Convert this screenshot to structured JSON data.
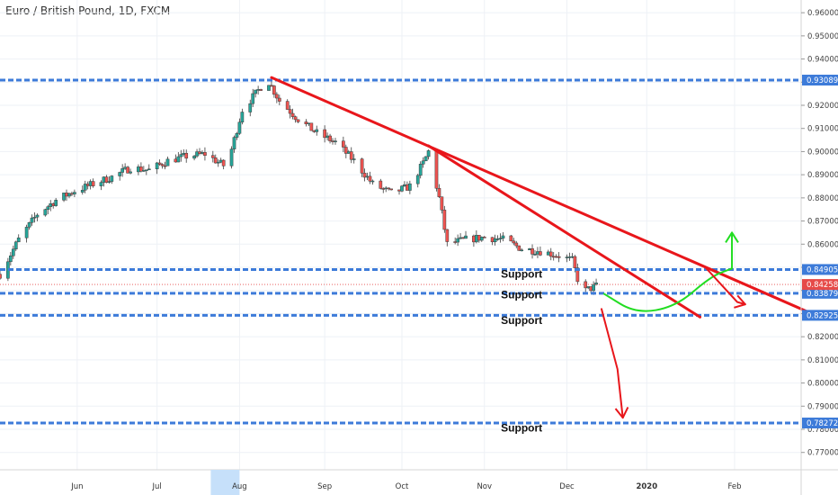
{
  "header": {
    "title": "Euro / British Pound, 1D, FXCM"
  },
  "colors": {
    "up": "#26a69a",
    "down": "#ef5350",
    "candle_outline": "#3c3c3c",
    "support_line": "#3d7bd9",
    "trend_line": "#e8161b",
    "projection_green": "#22dd22",
    "projection_red": "#e8161b",
    "grid": "#eef1f6",
    "price_marker": "#e64a48"
  },
  "chart_data": {
    "type": "candlestick",
    "title": "Euro / British Pound, 1D, FXCM",
    "xlabel": "",
    "ylabel": "",
    "ylim": [
      0.7625,
      0.9655
    ],
    "x_range": [
      "2019-05-03",
      "2020-02-28"
    ],
    "y_ticks": [
      "0.96000",
      "0.95000",
      "0.94000",
      "0.93000",
      "0.92000",
      "0.91000",
      "0.90000",
      "0.89000",
      "0.88000",
      "0.87000",
      "0.86000",
      "0.85000",
      "0.84000",
      "0.83000",
      "0.82000",
      "0.81000",
      "0.80000",
      "0.79000",
      "0.78000",
      "0.77000"
    ],
    "x_ticks": [
      {
        "label": "Jun",
        "date": "2019-06-01"
      },
      {
        "label": "Jul",
        "date": "2019-07-01"
      },
      {
        "label": "Aug",
        "date": "2019-08-01",
        "highlight": true
      },
      {
        "label": "Sep",
        "date": "2019-09-02"
      },
      {
        "label": "Oct",
        "date": "2019-10-01"
      },
      {
        "label": "Nov",
        "date": "2019-11-01"
      },
      {
        "label": "Dec",
        "date": "2019-12-02"
      },
      {
        "label": "2020",
        "date": "2020-01-01",
        "bold": true
      },
      {
        "label": "Feb",
        "date": "2020-02-03"
      }
    ],
    "price_path": [
      [
        "2019-05-03",
        0.847
      ],
      [
        "2019-05-10",
        0.862
      ],
      [
        "2019-05-17",
        0.873
      ],
      [
        "2019-05-24",
        0.879
      ],
      [
        "2019-05-31",
        0.883
      ],
      [
        "2019-06-07",
        0.886
      ],
      [
        "2019-06-14",
        0.889
      ],
      [
        "2019-06-21",
        0.893
      ],
      [
        "2019-06-28",
        0.892
      ],
      [
        "2019-07-05",
        0.896
      ],
      [
        "2019-07-12",
        0.898
      ],
      [
        "2019-07-19",
        0.899
      ],
      [
        "2019-07-26",
        0.894
      ],
      [
        "2019-07-29",
        0.901
      ],
      [
        "2019-08-02",
        0.918
      ],
      [
        "2019-08-07",
        0.925
      ],
      [
        "2019-08-09",
        0.928
      ],
      [
        "2019-08-12",
        0.93
      ],
      [
        "2019-08-16",
        0.922
      ],
      [
        "2019-08-23",
        0.914
      ],
      [
        "2019-08-30",
        0.908
      ],
      [
        "2019-09-06",
        0.904
      ],
      [
        "2019-09-13",
        0.896
      ],
      [
        "2019-09-20",
        0.886
      ],
      [
        "2019-09-27",
        0.882
      ],
      [
        "2019-10-04",
        0.885
      ],
      [
        "2019-10-09",
        0.895
      ],
      [
        "2019-10-11",
        0.9
      ],
      [
        "2019-10-15",
        0.88
      ],
      [
        "2019-10-18",
        0.86
      ],
      [
        "2019-10-25",
        0.862
      ],
      [
        "2019-11-01",
        0.863
      ],
      [
        "2019-11-08",
        0.862
      ],
      [
        "2019-11-15",
        0.858
      ],
      [
        "2019-11-22",
        0.857
      ],
      [
        "2019-11-29",
        0.855
      ],
      [
        "2019-12-04",
        0.853
      ],
      [
        "2019-12-06",
        0.845
      ],
      [
        "2019-12-09",
        0.84
      ],
      [
        "2019-12-13",
        0.842
      ],
      [
        "2019-12-15",
        0.8426
      ]
    ],
    "last_price": {
      "value": 0.84258,
      "label": "0.84258"
    },
    "support_levels": [
      {
        "value": 0.93089,
        "label": "0.93089"
      },
      {
        "value": 0.84905,
        "label": "0.84905"
      },
      {
        "value": 0.83879,
        "label": "0.83879"
      },
      {
        "value": 0.82925,
        "label": "0.82925"
      },
      {
        "value": 0.78272,
        "label": "0.78272"
      }
    ],
    "annotations": [
      {
        "text": "Support",
        "date": "2019-11-15",
        "value": 0.8455
      },
      {
        "text": "Support",
        "date": "2019-11-15",
        "value": 0.8365
      },
      {
        "text": "Support",
        "date": "2019-11-15",
        "value": 0.8255
      },
      {
        "text": "Support",
        "date": "2019-11-15",
        "value": 0.779
      }
    ],
    "trend_lines": [
      {
        "from": [
          "2019-08-13",
          0.932
        ],
        "to": [
          "2020-03-05",
          0.829
        ]
      },
      {
        "from": [
          "2019-10-11",
          0.9025
        ],
        "to": [
          "2020-01-21",
          0.8285
        ]
      }
    ],
    "projections": [
      {
        "color": "green",
        "points": [
          [
            "2019-12-16",
            0.8385
          ],
          [
            "2019-12-28",
            0.83
          ],
          [
            "2020-01-12",
            0.833
          ],
          [
            "2020-01-25",
            0.846
          ],
          [
            "2020-02-02",
            0.8495
          ]
        ],
        "arrow_to": [
          "2020-02-02",
          0.865
        ]
      },
      {
        "color": "red",
        "points": [
          [
            "2020-01-23",
            0.85
          ],
          [
            "2020-02-04",
            0.835
          ]
        ],
        "arrow_to": [
          "2020-02-07",
          0.834
        ]
      },
      {
        "color": "red",
        "points": [
          [
            "2019-12-15",
            0.832
          ],
          [
            "2019-12-21",
            0.806
          ]
        ],
        "arrow_to": [
          "2019-12-23",
          0.785
        ]
      }
    ]
  }
}
